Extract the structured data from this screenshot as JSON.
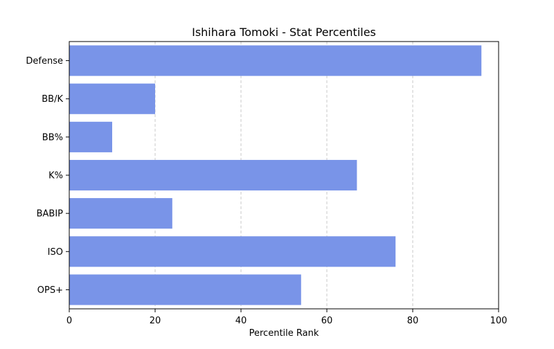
{
  "chart_data": {
    "type": "bar",
    "orientation": "horizontal",
    "title": "Ishihara Tomoki - Stat Percentiles",
    "xlabel": "Percentile Rank",
    "ylabel": "",
    "categories": [
      "Defense",
      "BB/K",
      "BB%",
      "K%",
      "BABIP",
      "ISO",
      "OPS+"
    ],
    "values": [
      96,
      20,
      10,
      67,
      24,
      76,
      54
    ],
    "xlim": [
      0,
      100
    ],
    "xticks": [
      0,
      20,
      40,
      60,
      80,
      100
    ],
    "grid": "x-dashed",
    "legend": "none",
    "bar_color": "#7994e8"
  }
}
